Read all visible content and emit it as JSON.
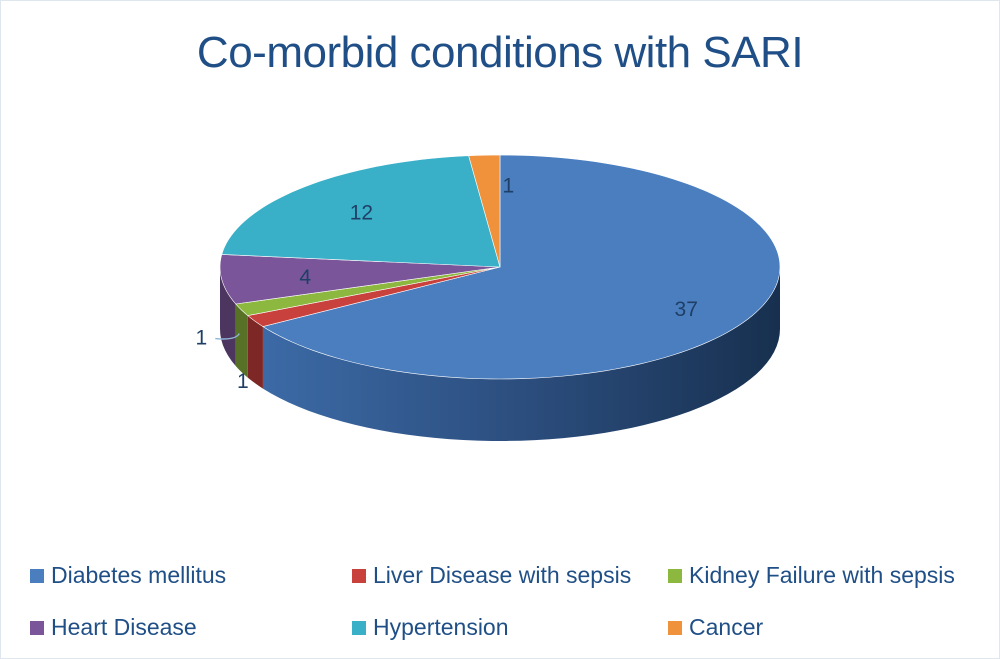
{
  "chart_data": {
    "type": "pie",
    "title": "Co-morbid conditions with SARI",
    "legend_position": "bottom",
    "slices": [
      {
        "name": "Diabetes mellitus",
        "value": 37,
        "color": "#4a7ebf"
      },
      {
        "name": "Liver Disease with sepsis",
        "value": 1,
        "color": "#c9413d"
      },
      {
        "name": "Kidney Failure with sepsis",
        "value": 1,
        "color": "#8db83f"
      },
      {
        "name": "Heart Disease",
        "value": 4,
        "color": "#7a559a"
      },
      {
        "name": "Hypertension",
        "value": 12,
        "color": "#3ab0c8"
      },
      {
        "name": "Cancer",
        "value": 1,
        "color": "#f0913c"
      }
    ]
  }
}
